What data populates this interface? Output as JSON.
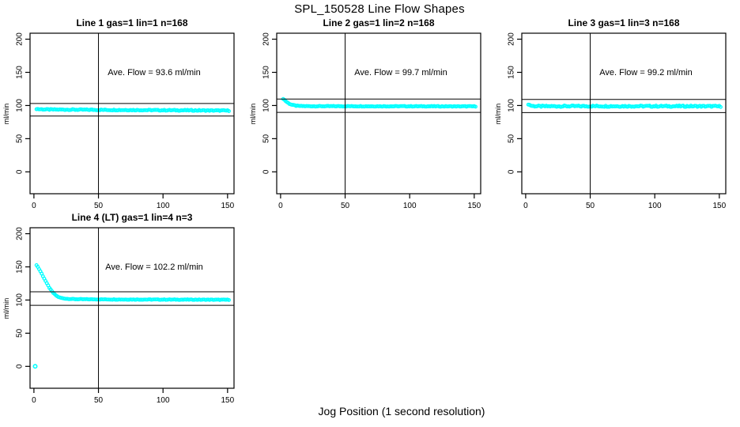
{
  "figure": {
    "title": "SPL_150528  Line Flow Shapes",
    "xlabel": "Jog Position (1 second resolution)"
  },
  "chart_data": {
    "type": "scatter",
    "title": "SPL_150528  Line Flow Shapes",
    "xlabel": "Jog Position (1 second resolution)",
    "ylabel": "ml/min",
    "point_color": "#00FFFF",
    "line_color": "#000000",
    "background": "#FFFFFF",
    "grid": false,
    "legend": "none",
    "x": {
      "ticks": [
        0,
        50,
        100,
        150
      ],
      "range": [
        -3,
        155
      ]
    },
    "y": {
      "ticks": [
        0,
        50,
        100,
        150,
        200
      ],
      "range": [
        -33,
        209
      ],
      "label": "ml/min"
    },
    "panels": [
      {
        "title": "Line 1 gas=1 lin=1 n=168",
        "annotation": "Ave. Flow =  93.6  ml/min",
        "ave_flow": 93.6,
        "n": 168,
        "hlines": [
          103.0,
          84.2
        ],
        "vline": 50,
        "scatter": 0.7,
        "points": [
          [
            2,
            95.0
          ],
          [
            4,
            94.4
          ],
          [
            8,
            94.1
          ],
          [
            15,
            93.9
          ],
          [
            25,
            93.8
          ],
          [
            40,
            93.6
          ],
          [
            60,
            93.3
          ],
          [
            80,
            93.1
          ],
          [
            100,
            92.9
          ],
          [
            120,
            92.7
          ],
          [
            135,
            92.5
          ],
          [
            151,
            92.3
          ]
        ],
        "outliers": []
      },
      {
        "title": "Line 2 gas=1 lin=2 n=168",
        "annotation": "Ave. Flow =  99.7  ml/min",
        "ave_flow": 99.7,
        "n": 168,
        "hlines": [
          109.7,
          89.7
        ],
        "vline": 50,
        "scatter": 0.5,
        "points": [
          [
            2,
            110.3
          ],
          [
            3,
            108.4
          ],
          [
            4,
            106.6
          ],
          [
            5,
            105.0
          ],
          [
            6,
            103.6
          ],
          [
            7,
            102.5
          ],
          [
            8,
            101.6
          ],
          [
            9,
            100.9
          ],
          [
            10,
            100.4
          ],
          [
            12,
            99.7
          ],
          [
            14,
            99.3
          ],
          [
            17,
            99.1
          ],
          [
            20,
            99.0
          ],
          [
            30,
            98.9
          ],
          [
            50,
            98.9
          ],
          [
            80,
            98.8
          ],
          [
            110,
            98.8
          ],
          [
            130,
            98.7
          ],
          [
            151,
            98.7
          ]
        ],
        "outliers": []
      },
      {
        "title": "Line 3 gas=1 lin=3 n=168",
        "annotation": "Ave. Flow =  99.2  ml/min",
        "ave_flow": 99.2,
        "n": 168,
        "hlines": [
          109.1,
          89.3
        ],
        "vline": 50,
        "scatter": 1.0,
        "points": [
          [
            2,
            102.2
          ],
          [
            3,
            100.9
          ],
          [
            4,
            100.0
          ],
          [
            5,
            99.4
          ],
          [
            7,
            99.0
          ],
          [
            10,
            98.8
          ],
          [
            15,
            98.8
          ],
          [
            25,
            98.9
          ],
          [
            50,
            99.0
          ],
          [
            80,
            99.0
          ],
          [
            110,
            98.9
          ],
          [
            130,
            98.9
          ],
          [
            151,
            98.8
          ]
        ],
        "outliers": []
      },
      {
        "title": "Line 4 (LT) gas=1 lin=4 n=3",
        "annotation": "Ave. Flow =  102.2  ml/min",
        "ave_flow": 102.2,
        "n": 3,
        "hlines": [
          112.4,
          92.0
        ],
        "vline": 50,
        "scatter": 0.4,
        "points": [
          [
            2,
            153.0
          ],
          [
            3,
            150.0
          ],
          [
            4,
            146.8
          ],
          [
            5,
            143.4
          ],
          [
            6,
            139.8
          ],
          [
            7,
            136.1
          ],
          [
            8,
            132.4
          ],
          [
            9,
            128.7
          ],
          [
            10,
            125.1
          ],
          [
            11,
            121.7
          ],
          [
            12,
            118.5
          ],
          [
            13,
            115.6
          ],
          [
            14,
            113.0
          ],
          [
            15,
            110.7
          ],
          [
            16,
            108.8
          ],
          [
            17,
            107.1
          ],
          [
            18,
            105.7
          ],
          [
            19,
            104.6
          ],
          [
            20,
            103.7
          ],
          [
            22,
            102.8
          ],
          [
            24,
            102.2
          ],
          [
            26,
            101.8
          ],
          [
            28,
            101.6
          ],
          [
            30,
            101.4
          ],
          [
            35,
            101.2
          ],
          [
            40,
            101.1
          ],
          [
            50,
            101.0
          ],
          [
            70,
            100.8
          ],
          [
            90,
            100.7
          ],
          [
            110,
            100.6
          ],
          [
            130,
            100.5
          ],
          [
            151,
            100.4
          ]
        ],
        "outliers": [
          [
            1,
            0
          ]
        ]
      }
    ]
  }
}
